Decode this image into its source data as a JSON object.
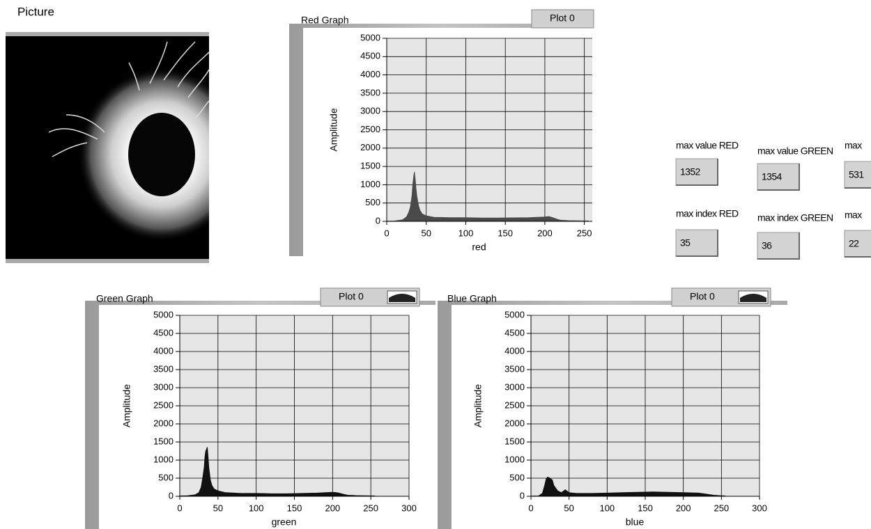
{
  "picture_label": "Picture",
  "indicators": [
    {
      "label": "max value RED",
      "value": 1352
    },
    {
      "label": "max value GREEN",
      "value": 1354
    },
    {
      "label": "max",
      "value": 531
    },
    {
      "label": "max index RED",
      "value": 35
    },
    {
      "label": "max index GREEN",
      "value": 36
    },
    {
      "label": "max",
      "value": 22
    }
  ],
  "chart_data": [
    {
      "type": "area",
      "title": "Red Graph",
      "x_label": "red",
      "y_label": "Amplitude",
      "x": [
        0,
        10,
        20,
        25,
        28,
        30,
        32,
        33,
        34,
        35,
        36,
        37,
        38,
        40,
        42,
        45,
        50,
        60,
        80,
        100,
        120,
        140,
        160,
        180,
        200,
        205,
        210,
        215,
        220,
        230,
        240,
        255
      ],
      "series": [
        {
          "name": "Plot 0",
          "color": "#4a4a4a",
          "values": [
            5,
            10,
            40,
            120,
            250,
            400,
            700,
            1000,
            1200,
            1352,
            1150,
            900,
            700,
            450,
            300,
            200,
            150,
            110,
            100,
            100,
            90,
            90,
            95,
            100,
            120,
            130,
            100,
            60,
            30,
            20,
            15,
            10
          ]
        }
      ],
      "xlim": [
        0,
        260
      ],
      "xticks": [
        0,
        50,
        100,
        150,
        200,
        250
      ],
      "ylim": [
        0,
        5000
      ],
      "yticks": [
        0,
        500,
        1000,
        1500,
        2000,
        2500,
        3000,
        3500,
        4000,
        4500,
        5000
      ],
      "grid": true
    },
    {
      "type": "area",
      "title": "Green Graph",
      "x_label": "green",
      "y_label": "Amplitude",
      "x": [
        0,
        10,
        20,
        25,
        28,
        30,
        32,
        33,
        34,
        35,
        36,
        37,
        38,
        40,
        42,
        45,
        50,
        60,
        80,
        100,
        120,
        140,
        160,
        180,
        200,
        205,
        210,
        215,
        220,
        230,
        240,
        255
      ],
      "series": [
        {
          "name": "Plot 0",
          "color": "#111111",
          "values": [
            10,
            15,
            40,
            100,
            250,
            500,
            800,
            1100,
            1250,
            1300,
            1354,
            1100,
            800,
            450,
            300,
            200,
            150,
            100,
            80,
            80,
            70,
            70,
            80,
            90,
            110,
            100,
            80,
            50,
            30,
            20,
            15,
            10
          ]
        }
      ],
      "xlim": [
        0,
        300
      ],
      "xticks": [
        0,
        50,
        100,
        150,
        200,
        250,
        300
      ],
      "ylim": [
        0,
        5000
      ],
      "yticks": [
        0,
        500,
        1000,
        1500,
        2000,
        2500,
        3000,
        3500,
        4000,
        4500,
        5000
      ],
      "grid": true
    },
    {
      "type": "area",
      "title": "Blue Graph",
      "x_label": "blue",
      "y_label": "Amplitude",
      "x": [
        0,
        10,
        15,
        18,
        20,
        22,
        25,
        28,
        30,
        35,
        40,
        45,
        50,
        55,
        60,
        80,
        100,
        120,
        140,
        160,
        180,
        200,
        220,
        230,
        240,
        250,
        255
      ],
      "series": [
        {
          "name": "Plot 0",
          "color": "#111111",
          "values": [
            5,
            10,
            80,
            300,
            480,
            531,
            500,
            450,
            300,
            150,
            100,
            180,
            100,
            90,
            80,
            80,
            90,
            100,
            110,
            120,
            110,
            100,
            90,
            60,
            30,
            15,
            10
          ]
        }
      ],
      "xlim": [
        0,
        300
      ],
      "xticks": [
        0,
        50,
        100,
        150,
        200,
        250,
        300
      ],
      "ylim": [
        0,
        5000
      ],
      "yticks": [
        0,
        500,
        1000,
        1500,
        2000,
        2500,
        3000,
        3500,
        4000,
        4500,
        5000
      ],
      "grid": true
    }
  ]
}
